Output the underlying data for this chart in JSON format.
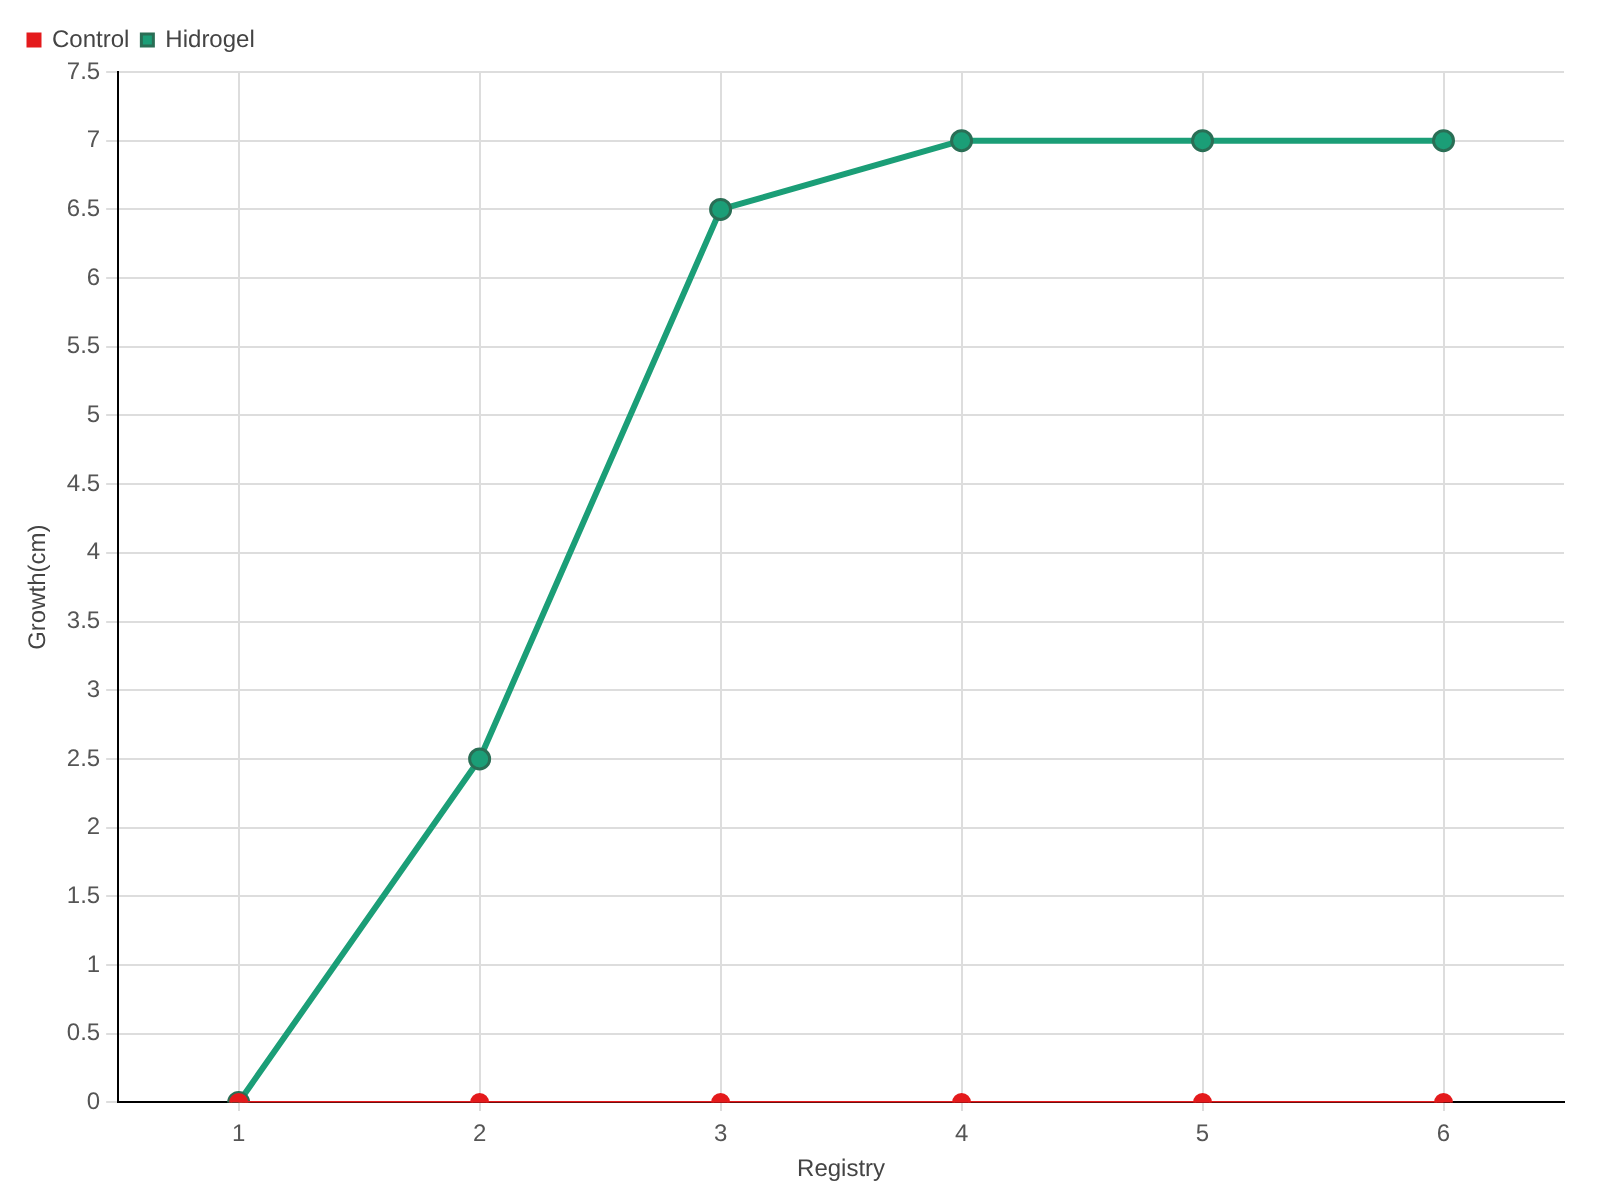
{
  "chart_data": {
    "type": "line",
    "xlabel": "Registry",
    "ylabel": "Growth(cm)",
    "categories": [
      "1",
      "2",
      "3",
      "4",
      "5",
      "6"
    ],
    "series": [
      {
        "name": "Hidrogel",
        "color": "#1b9e77",
        "values": [
          0,
          2.5,
          6.5,
          7,
          7,
          7
        ]
      },
      {
        "name": "Control",
        "color": "#e41a1c",
        "values": [
          0,
          0,
          0,
          0,
          0,
          0
        ]
      }
    ],
    "ylim": [
      0,
      7.5
    ],
    "yticks": [
      0,
      0.5,
      1,
      1.5,
      2,
      2.5,
      3,
      3.5,
      4,
      4.5,
      5,
      5.5,
      6,
      6.5,
      7,
      7.5
    ],
    "grid": true,
    "legend": "top left",
    "marker": "circle",
    "line_style": "solid"
  }
}
